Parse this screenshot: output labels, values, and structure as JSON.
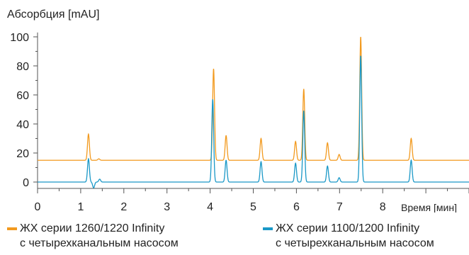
{
  "chart_data": {
    "type": "line",
    "ylabel": "Абсорбция [mAU]",
    "xlabel": "Время [мин]",
    "xlim": [
      0,
      10
    ],
    "ylim": [
      -5,
      102
    ],
    "xticks": [
      "0",
      "1",
      "2",
      "3",
      "4",
      "5",
      "6",
      "7",
      "8"
    ],
    "yticks": [
      "0",
      "20",
      "40",
      "60",
      "80",
      "100"
    ],
    "grid": false,
    "legend_position": "bottom",
    "series": [
      {
        "name": "ЖХ серии 1260/1220 Infinity с четырехканальным насосом",
        "legend_line1": "ЖХ серии 1260/1220 Infinity",
        "legend_line2": "с четырехканальным насосом",
        "color": "#f29a1f",
        "baseline": 15,
        "peaks": [
          {
            "x": 1.18,
            "y": 33
          },
          {
            "x": 1.42,
            "y": 16
          },
          {
            "x": 4.08,
            "y": 78
          },
          {
            "x": 4.37,
            "y": 32
          },
          {
            "x": 5.18,
            "y": 30
          },
          {
            "x": 5.98,
            "y": 28
          },
          {
            "x": 6.17,
            "y": 64
          },
          {
            "x": 6.72,
            "y": 27
          },
          {
            "x": 6.99,
            "y": 19
          },
          {
            "x": 7.49,
            "y": 100
          },
          {
            "x": 8.66,
            "y": 30
          }
        ]
      },
      {
        "name": "ЖХ серии 1100/1200 Infinity с четырехканальным насосом",
        "legend_line1": "ЖХ серии 1100/1200 Infinity",
        "legend_line2": "с четырехканальным насосом",
        "color": "#1a98c7",
        "baseline": 0,
        "peaks": [
          {
            "x": 1.18,
            "y": 16
          },
          {
            "x": 1.3,
            "y": -4
          },
          {
            "x": 1.44,
            "y": 2
          },
          {
            "x": 4.06,
            "y": 57
          },
          {
            "x": 4.37,
            "y": 15
          },
          {
            "x": 5.18,
            "y": 14
          },
          {
            "x": 5.98,
            "y": 13
          },
          {
            "x": 6.17,
            "y": 49
          },
          {
            "x": 6.72,
            "y": 11
          },
          {
            "x": 6.99,
            "y": 3
          },
          {
            "x": 7.49,
            "y": 87
          },
          {
            "x": 8.66,
            "y": 15
          }
        ]
      }
    ]
  }
}
